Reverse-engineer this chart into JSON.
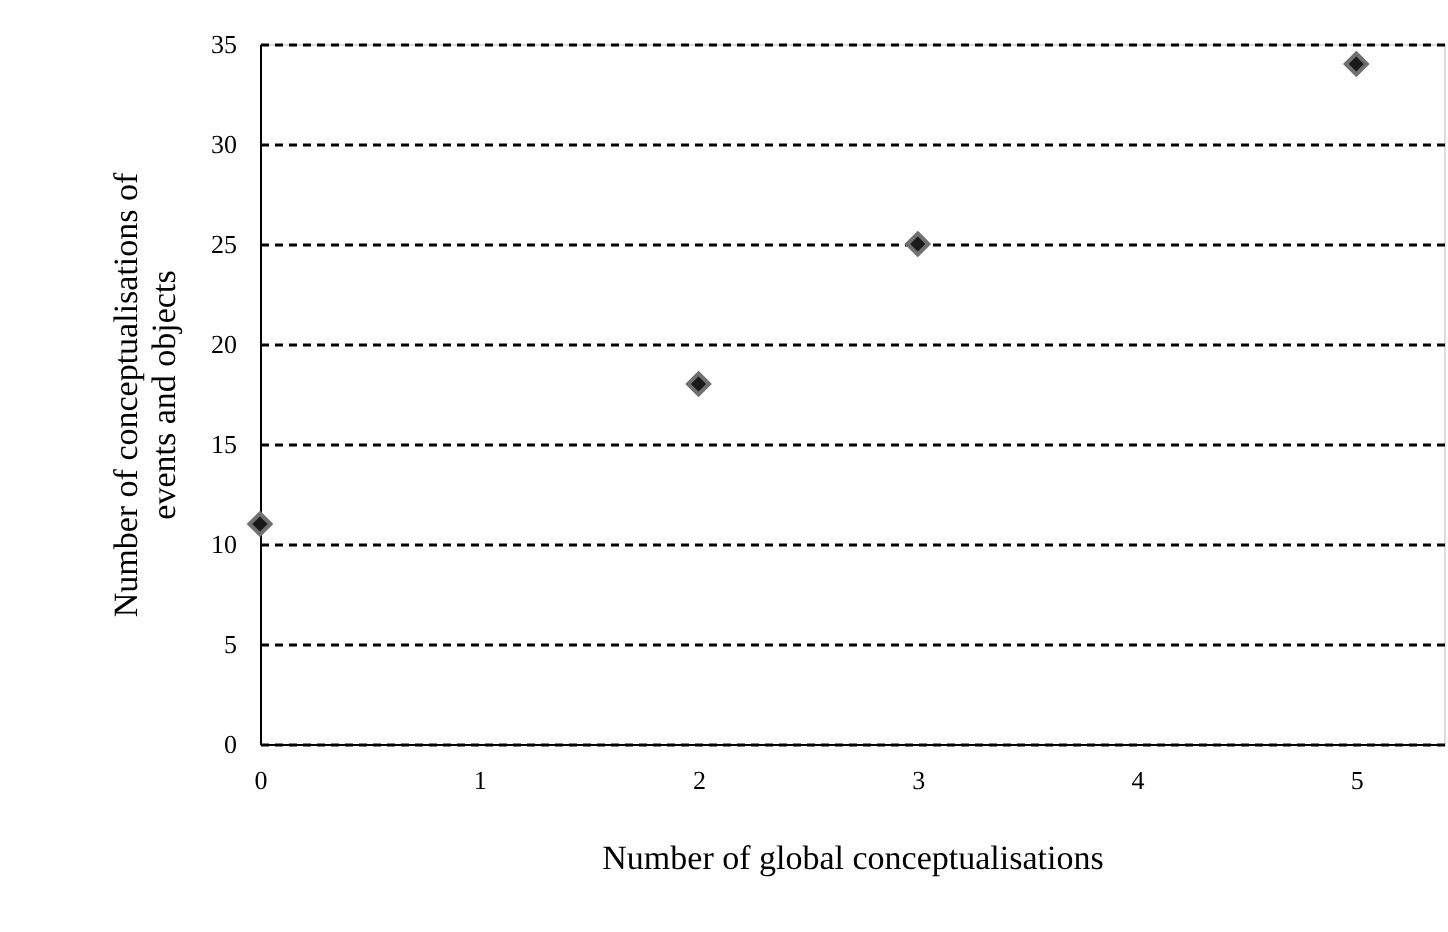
{
  "chart_data": {
    "type": "scatter",
    "xlabel": "Number of global conceptualisations",
    "ylabel": "Number of conceptualisations of\nevents and objects",
    "x": [
      0,
      2,
      3,
      5
    ],
    "series": [
      {
        "color": "#1a1a1a",
        "values": [
          11,
          18,
          25,
          34
        ]
      }
    ],
    "xlim": [
      0,
      5.4
    ],
    "xticks": [
      0,
      1,
      2,
      3,
      4,
      5
    ],
    "ylim": [
      0,
      35
    ],
    "yticks": [
      0,
      5,
      10,
      15,
      20,
      25,
      30,
      35
    ],
    "grid": "y",
    "line_style": "dashed",
    "marker": "diamond",
    "legend": false
  }
}
